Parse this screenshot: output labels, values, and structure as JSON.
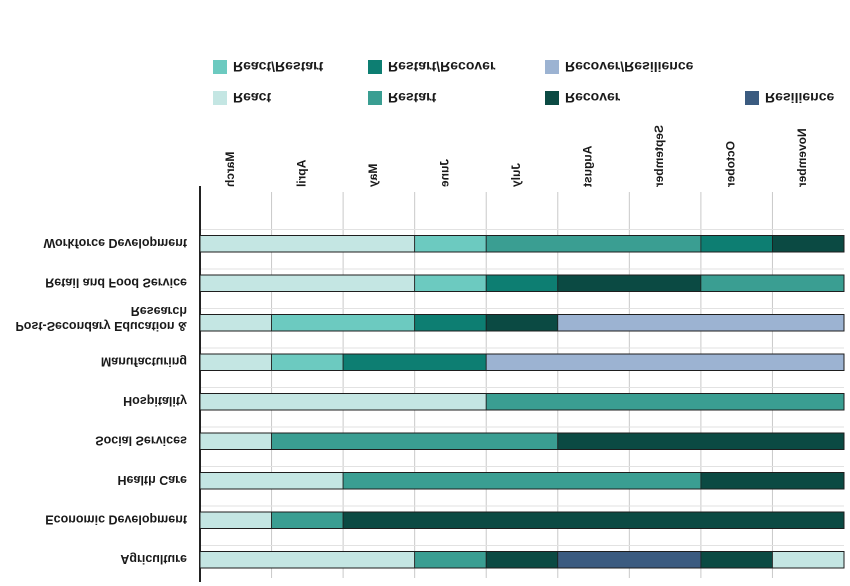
{
  "chart_data": {
    "type": "bar",
    "orientation": "horizontal-stacked-gantt",
    "rendered_flipped": "vertical",
    "months": [
      "March",
      "April",
      "May",
      "June",
      "July",
      "August",
      "September",
      "October",
      "November"
    ],
    "categories": [
      "Agriculture",
      "Economic Development",
      "Health Care",
      "Social Services",
      "Hospitality",
      "Manufacturing",
      "Post-Secondary Education & Research",
      "Retail and Food Service",
      "Workforce Development"
    ],
    "legend": [
      {
        "name": "React",
        "color": "#c4e6e3"
      },
      {
        "name": "Restart",
        "color": "#3a9e92"
      },
      {
        "name": "Recover",
        "color": "#0b4a43"
      },
      {
        "name": "Resilience",
        "color": "#3b5b80"
      },
      {
        "name": "React/Restart",
        "color": "#6ccac0"
      },
      {
        "name": "Restart/Recover",
        "color": "#0d7e72"
      },
      {
        "name": "Recover/Resilience",
        "color": "#9cb3d2"
      }
    ],
    "legend_position": "top",
    "grid": true,
    "xlim": [
      0,
      9
    ],
    "rows": [
      {
        "category": "Agriculture",
        "segments": [
          {
            "phase": "React",
            "start": 0,
            "end": 3
          },
          {
            "phase": "Restart",
            "start": 3,
            "end": 4
          },
          {
            "phase": "Recover",
            "start": 4,
            "end": 5
          },
          {
            "phase": "Resilience",
            "start": 5,
            "end": 7
          },
          {
            "phase": "Recover",
            "start": 7,
            "end": 8
          },
          {
            "phase": "React",
            "start": 8,
            "end": 9
          }
        ]
      },
      {
        "category": "Economic Development",
        "segments": [
          {
            "phase": "React",
            "start": 0,
            "end": 1
          },
          {
            "phase": "Restart",
            "start": 1,
            "end": 2
          },
          {
            "phase": "Recover",
            "start": 2,
            "end": 9
          }
        ]
      },
      {
        "category": "Health Care",
        "segments": [
          {
            "phase": "React",
            "start": 0,
            "end": 2
          },
          {
            "phase": "Restart",
            "start": 2,
            "end": 7
          },
          {
            "phase": "Recover",
            "start": 7,
            "end": 9
          }
        ]
      },
      {
        "category": "Social Services",
        "segments": [
          {
            "phase": "React",
            "start": 0,
            "end": 1
          },
          {
            "phase": "Restart",
            "start": 1,
            "end": 5
          },
          {
            "phase": "Recover",
            "start": 5,
            "end": 9
          }
        ]
      },
      {
        "category": "Hospitality",
        "segments": [
          {
            "phase": "React",
            "start": 0,
            "end": 4
          },
          {
            "phase": "Restart",
            "start": 4,
            "end": 9
          }
        ]
      },
      {
        "category": "Manufacturing",
        "segments": [
          {
            "phase": "React",
            "start": 0,
            "end": 1
          },
          {
            "phase": "React/Restart",
            "start": 1,
            "end": 2
          },
          {
            "phase": "Restart/Recover",
            "start": 2,
            "end": 4
          },
          {
            "phase": "Recover/Resilience",
            "start": 4,
            "end": 9
          }
        ]
      },
      {
        "category": "Post-Secondary Education & Research",
        "segments": [
          {
            "phase": "React",
            "start": 0,
            "end": 1
          },
          {
            "phase": "React/Restart",
            "start": 1,
            "end": 3
          },
          {
            "phase": "Restart/Recover",
            "start": 3,
            "end": 4
          },
          {
            "phase": "Recover",
            "start": 4,
            "end": 5
          },
          {
            "phase": "Recover/Resilience",
            "start": 5,
            "end": 9
          }
        ]
      },
      {
        "category": "Retail and Food Service",
        "segments": [
          {
            "phase": "React",
            "start": 0,
            "end": 3
          },
          {
            "phase": "React/Restart",
            "start": 3,
            "end": 4
          },
          {
            "phase": "Restart/Recover",
            "start": 4,
            "end": 5
          },
          {
            "phase": "Recover",
            "start": 5,
            "end": 7
          },
          {
            "phase": "Restart",
            "start": 7,
            "end": 9
          }
        ]
      },
      {
        "category": "Workforce Development",
        "segments": [
          {
            "phase": "React",
            "start": 0,
            "end": 3
          },
          {
            "phase": "React/Restart",
            "start": 3,
            "end": 4
          },
          {
            "phase": "Restart",
            "start": 4,
            "end": 7
          },
          {
            "phase": "Restart/Recover",
            "start": 7,
            "end": 8
          },
          {
            "phase": "Recover",
            "start": 8,
            "end": 9
          }
        ]
      }
    ]
  }
}
